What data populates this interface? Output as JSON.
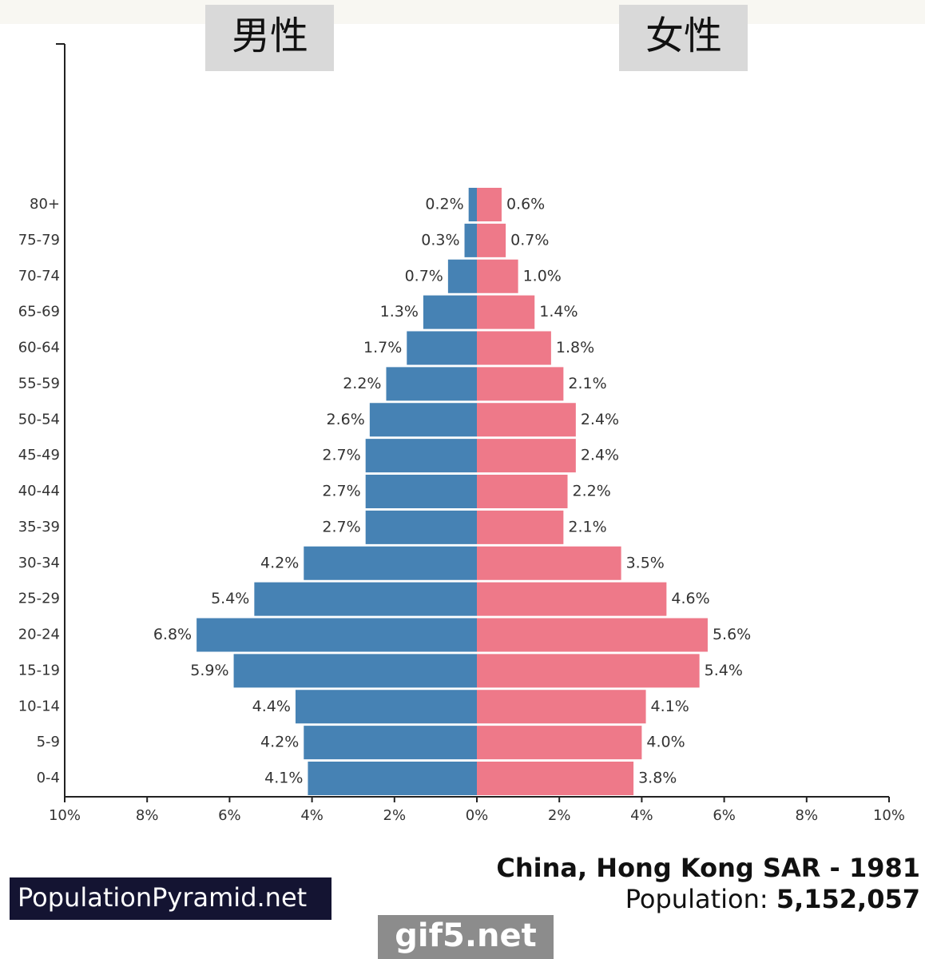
{
  "chart_data": {
    "type": "pyramid",
    "title": "China, Hong Kong SAR - 1981",
    "population_label": "Population:",
    "population": "5,152,057",
    "source": "PopulationPyramid.net",
    "watermark": "gif5.net",
    "categories": [
      "80+",
      "75-79",
      "70-74",
      "65-69",
      "60-64",
      "55-59",
      "50-54",
      "45-49",
      "40-44",
      "35-39",
      "30-34",
      "25-29",
      "20-24",
      "15-19",
      "10-14",
      "5-9",
      "0-4"
    ],
    "series": [
      {
        "name": "男性",
        "color": "#4682b4",
        "side": "left",
        "values": [
          0.2,
          0.3,
          0.7,
          1.3,
          1.7,
          2.2,
          2.6,
          2.7,
          2.7,
          2.7,
          4.2,
          5.4,
          6.8,
          5.9,
          4.4,
          4.2,
          4.1
        ],
        "value_labels": [
          "0.2%",
          "0.3%",
          "0.7%",
          "1.3%",
          "1.7%",
          "2.2%",
          "2.6%",
          "2.7%",
          "2.7%",
          "2.7%",
          "4.2%",
          "5.4%",
          "6.8%",
          "5.9%",
          "4.4%",
          "4.2%",
          "4.1%"
        ]
      },
      {
        "name": "女性",
        "color": "#ee7989",
        "side": "right",
        "values": [
          0.6,
          0.7,
          1.0,
          1.4,
          1.8,
          2.1,
          2.4,
          2.4,
          2.2,
          2.1,
          3.5,
          4.6,
          5.6,
          5.4,
          4.1,
          4.0,
          3.8
        ],
        "value_labels": [
          "0.6%",
          "0.7%",
          "1.0%",
          "1.4%",
          "1.8%",
          "2.1%",
          "2.4%",
          "2.4%",
          "2.2%",
          "2.1%",
          "3.5%",
          "4.6%",
          "5.6%",
          "5.4%",
          "4.1%",
          "4.0%",
          "3.8%"
        ]
      }
    ],
    "xlim": [
      -10,
      10
    ],
    "xticks": [
      {
        "value": -10,
        "label": "10%"
      },
      {
        "value": -8,
        "label": "8%"
      },
      {
        "value": -6,
        "label": "6%"
      },
      {
        "value": -4,
        "label": "4%"
      },
      {
        "value": -2,
        "label": "2%"
      },
      {
        "value": 0,
        "label": "0%"
      },
      {
        "value": 2,
        "label": "2%"
      },
      {
        "value": 4,
        "label": "4%"
      },
      {
        "value": 6,
        "label": "6%"
      },
      {
        "value": 8,
        "label": "8%"
      },
      {
        "value": 10,
        "label": "10%"
      }
    ]
  }
}
